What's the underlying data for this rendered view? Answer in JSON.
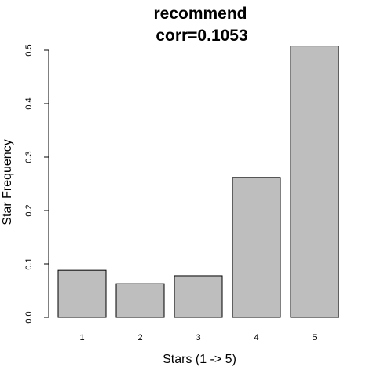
{
  "chart_data": {
    "type": "bar",
    "title": "recommend",
    "subtitle": "corr=0.1053",
    "xlabel": "Stars (1 -> 5)",
    "ylabel": "Star Frequency",
    "categories": [
      "1",
      "2",
      "3",
      "4",
      "5"
    ],
    "values": [
      0.088,
      0.063,
      0.078,
      0.262,
      0.508
    ],
    "yticks": [
      "0.0",
      "0.1",
      "0.2",
      "0.3",
      "0.4",
      "0.5"
    ],
    "ylim": [
      0,
      0.5
    ],
    "grid": false,
    "legend": "none",
    "colors": {
      "bar_fill": "#bebebe",
      "bar_stroke": "#000000",
      "axis": "#000000"
    }
  }
}
